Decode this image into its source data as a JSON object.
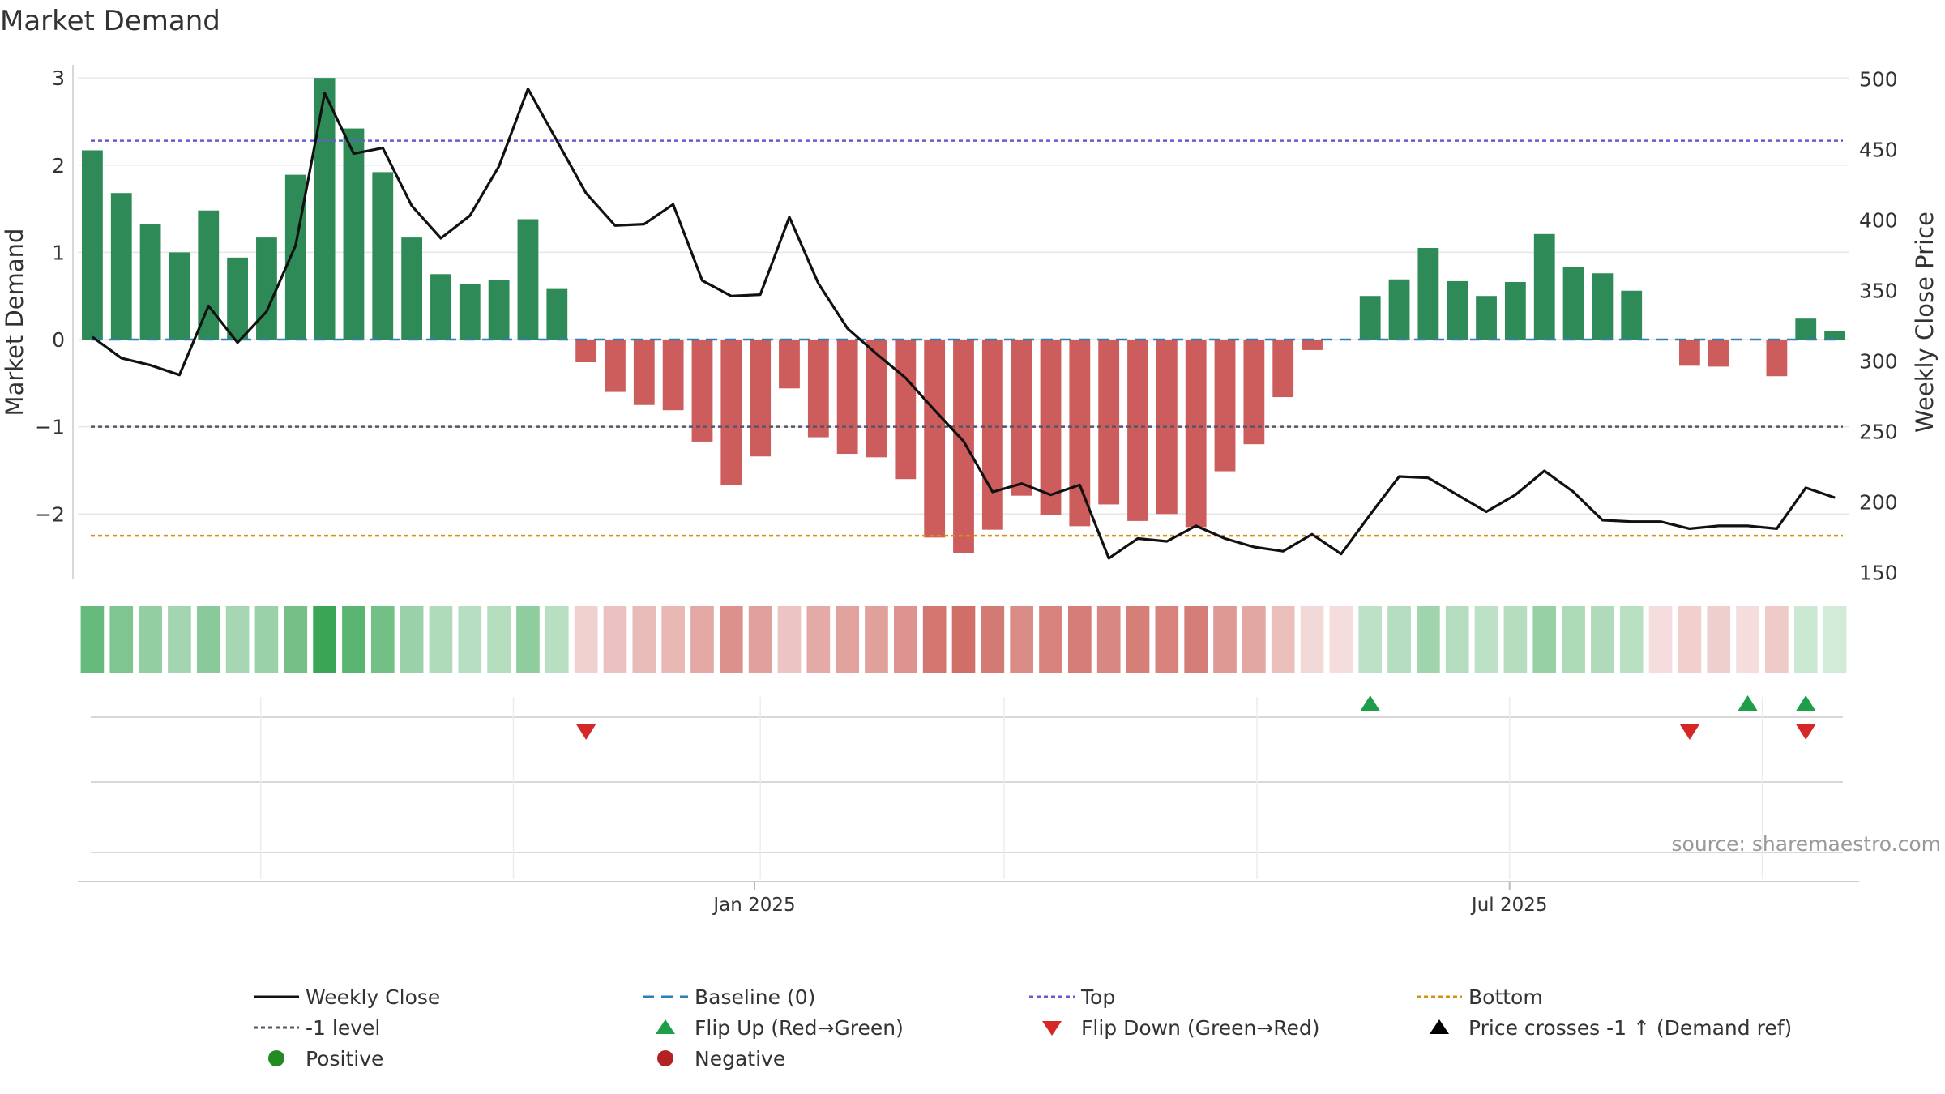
{
  "chart_data": {
    "type": "bar",
    "title": "Market Demand",
    "ylabel": "Market Demand",
    "y2label": "Weekly Close Price",
    "ylim": [
      -2.75,
      3.15
    ],
    "y2lim": [
      145,
      510
    ],
    "yticks": [
      -2,
      -1,
      0,
      1,
      2,
      3
    ],
    "ytick_labels": [
      "−2",
      "−1",
      "0",
      "1",
      "2",
      "3"
    ],
    "y2ticks": [
      150,
      200,
      250,
      300,
      350,
      400,
      450,
      500
    ],
    "y2tick_labels": [
      "150",
      "200",
      "250",
      "300",
      "350",
      "400",
      "450",
      "500"
    ],
    "xticks": [
      {
        "label": "Jan 2025",
        "index": 23.3
      },
      {
        "label": "Jul 2025",
        "index": 49.3
      }
    ],
    "grid": true,
    "source_text": "source: sharemaestro.com",
    "reference_lines": {
      "baseline": 0,
      "top": 2.28,
      "minus_one": -1,
      "bottom": -2.25
    },
    "series": [
      {
        "name": "Market Demand",
        "kind": "bar",
        "values": [
          2.17,
          1.68,
          1.32,
          1.0,
          1.48,
          0.94,
          1.17,
          1.89,
          3.0,
          2.42,
          1.92,
          1.17,
          0.75,
          0.64,
          0.68,
          1.38,
          0.58,
          -0.26,
          -0.6,
          -0.75,
          -0.81,
          -1.17,
          -1.67,
          -1.34,
          -0.56,
          -1.12,
          -1.31,
          -1.35,
          -1.6,
          -2.27,
          -2.45,
          -2.18,
          -1.79,
          -2.01,
          -2.14,
          -1.89,
          -2.08,
          -2.0,
          -2.15,
          -1.51,
          -1.2,
          -0.66,
          -0.12,
          0.0,
          0.5,
          0.69,
          1.05,
          0.67,
          0.5,
          0.66,
          1.21,
          0.83,
          0.76,
          0.56,
          0.0,
          -0.3,
          -0.31,
          0.0,
          -0.42,
          0.24,
          0.1
        ]
      },
      {
        "name": "Weekly Close",
        "kind": "line",
        "axis": "right",
        "values": [
          317,
          302,
          297,
          290,
          339,
          313,
          335,
          382,
          490,
          447,
          451,
          410,
          387,
          403,
          438,
          493,
          456,
          419,
          396,
          397,
          411,
          357,
          346,
          347,
          402,
          355,
          323,
          305,
          288,
          265,
          243,
          207,
          213,
          205,
          212,
          160,
          174,
          172,
          183,
          174,
          168,
          165,
          177,
          163,
          191,
          218,
          217,
          205,
          193,
          205,
          222,
          207,
          187,
          186,
          186,
          181,
          183,
          183,
          181,
          210,
          203
        ]
      }
    ],
    "signals": {
      "flip_up_indices": [
        44,
        57,
        59
      ],
      "flip_down_indices": [
        17,
        55,
        59
      ]
    },
    "legend": [
      {
        "key": "weekly-close",
        "label": "Weekly Close"
      },
      {
        "key": "baseline",
        "label": "Baseline (0)"
      },
      {
        "key": "top",
        "label": "Top"
      },
      {
        "key": "bottom",
        "label": "Bottom"
      },
      {
        "key": "minus-one",
        "label": "-1 level"
      },
      {
        "key": "flip-up",
        "label": "Flip Up (Red→Green)"
      },
      {
        "key": "flip-down",
        "label": "Flip Down (Green→Red)"
      },
      {
        "key": "price-cross",
        "label": "Price crosses -1 ↑ (Demand ref)"
      },
      {
        "key": "positive",
        "label": "Positive"
      },
      {
        "key": "negative",
        "label": "Negative"
      }
    ],
    "colors": {
      "positive": "#2e8b57",
      "negative": "#cd5c5c",
      "price": "#111111",
      "baseline": "#2e7fb8",
      "top": "#6a5acd",
      "bottom": "#d4900f",
      "minus_one": "#555566",
      "flip_up": "#1f9e4a",
      "flip_down": "#d62728",
      "positive_dot": "#228b22",
      "negative_dot": "#b22222",
      "heat_positive": "#3aa655",
      "heat_negative": "#c8554e",
      "grid": "#e6e6e6",
      "axis_text": "#333333",
      "source": "#999999"
    }
  }
}
